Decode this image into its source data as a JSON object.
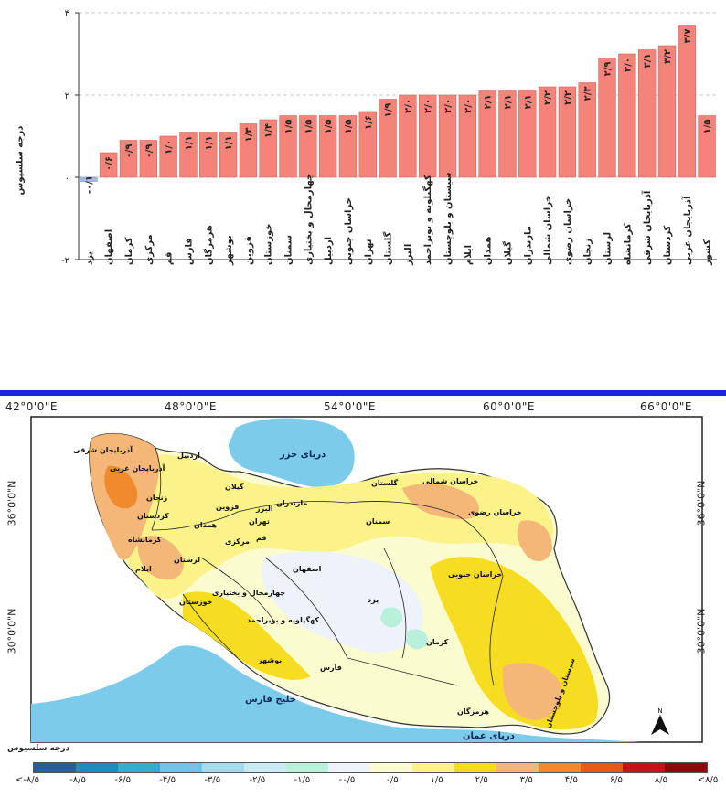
{
  "chart_data": {
    "type": "bar",
    "ylabel": "درجه سلسیوس",
    "ylim": [
      -2,
      4
    ],
    "yticks": [
      -2,
      0,
      2,
      4
    ],
    "ytick_labels": [
      "-۲",
      "۰",
      "۲",
      "۴"
    ],
    "grid": true,
    "categories": [
      "یزد",
      "اصفهان",
      "کرمان",
      "مرکزی",
      "قم",
      "فارس",
      "هرمزگان",
      "بوشهر",
      "قزوین",
      "خوزستان",
      "سمنان",
      "چهارمحال و بختیاری",
      "اردبیل",
      "خراسان جنوبی",
      "تهران",
      "گلستان",
      "البرز",
      "کهگیلویه و بویراحمد",
      "سیستان و بلوچستان",
      "ایلام",
      "همدان",
      "گیلان",
      "مازندران",
      "خراسان شمالی",
      "خراسان رضوی",
      "زنجان",
      "لرستان",
      "کرمانشاه",
      "آذربایجان شرقی",
      "کردستان",
      "آذربایجان غربی",
      "کشور"
    ],
    "values": [
      -0.1,
      0.6,
      0.9,
      0.9,
      1.0,
      1.1,
      1.1,
      1.1,
      1.3,
      1.4,
      1.5,
      1.5,
      1.5,
      1.5,
      1.6,
      1.9,
      2.0,
      2.0,
      2.0,
      2.0,
      2.1,
      2.1,
      2.1,
      2.2,
      2.2,
      2.3,
      2.9,
      3.0,
      3.1,
      3.2,
      3.7,
      1.5
    ],
    "value_labels": [
      "-۰/۱",
      "۰/۶",
      "۰/۹",
      "۰/۹",
      "۱/۰",
      "۱/۱",
      "۱/۱",
      "۱/۱",
      "۱/۳",
      "۱/۴",
      "۱/۵",
      "۱/۵",
      "۱/۵",
      "۱/۵",
      "۱/۶",
      "۱/۹",
      "۲/۰",
      "۲/۰",
      "۲/۰",
      "۲/۰",
      "۲/۱",
      "۲/۱",
      "۲/۱",
      "۲/۲",
      "۲/۲",
      "۲/۳",
      "۲/۹",
      "۳/۰",
      "۳/۱",
      "۳/۲",
      "۳/۷",
      "۱/۵"
    ],
    "colors": {
      "positive": "#f4837a",
      "negative": "#a7b9dc",
      "grid": "#c8c8c8",
      "bar_stroke": "#d0665d"
    }
  },
  "map": {
    "lon_labels": [
      "42°0'0\"E",
      "48°0'0\"E",
      "54°0'0\"E",
      "60°0'0\"E",
      "66°0'0\"E"
    ],
    "lat_labels": [
      "36°0'0\"N",
      "30°0'0\"N"
    ],
    "lat_labels_right": [
      "36°0'0\"N",
      "30°0'0\"N"
    ],
    "water_labels": {
      "caspian": "دریای خزر",
      "persian_gulf": "خلیج فارس",
      "oman_sea": "دریای عمان"
    },
    "provinces": {
      "ardabil": "اردبیل",
      "east_azerbaijan": "آذربایجان شرقی",
      "west_azerbaijan": "آذربایجان غربی",
      "zanjan": "زنجان",
      "gilan": "گیلان",
      "mazandaran": "مازندران",
      "golestan": "گلستان",
      "north_khorasan": "خراسان شمالی",
      "razavi_khorasan": "خراسان رضوی",
      "south_khorasan": "خراسان جنوبی",
      "semnan": "سمنان",
      "tehran": "تهران",
      "alborz": "البرز",
      "qazvin": "قزوین",
      "kurdistan": "کردستان",
      "hamedan": "همدان",
      "kermanshah": "کرمانشاه",
      "lorestan": "لرستان",
      "ilam": "ایلام",
      "markazi": "مرکزی",
      "qom": "قم",
      "isfahan": "اصفهان",
      "chaharmahal": "چهارمحال و بختیاری",
      "kohgiluyeh": "کهگیلویه و بویراحمد",
      "khuzestan": "خوزستان",
      "bushehr": "بوشهر",
      "fars": "فارس",
      "yazd": "یزد",
      "kerman": "کرمان",
      "hormozgan": "هرمزگان",
      "sistan": "سیستان و بلوچستان"
    },
    "north_label": "N",
    "legend": {
      "title": "درجه سلسیوس",
      "colors": [
        "#2c5aa0",
        "#1f8bb8",
        "#34a9d6",
        "#6ec6e6",
        "#a9dbee",
        "#c8ebf2",
        "#b8f0dc",
        "#eef2fa",
        "#fbfbd0",
        "#fbf28a",
        "#f7dd21",
        "#f4b777",
        "#f08a2c",
        "#e35a16",
        "#c21418",
        "#8b0a0a"
      ],
      "tick_labels": [
        "<-۸/۵",
        "-۸/۵",
        "-۶/۵",
        "-۴/۵",
        "-۳/۵",
        "-۲/۵",
        "-۱/۵",
        "-۰/۵",
        "۰/۵",
        "۱/۵",
        "۲/۵",
        "۳/۵",
        "۴/۵",
        "۶/۵",
        "۸/۵",
        "<۸/۵"
      ]
    }
  }
}
